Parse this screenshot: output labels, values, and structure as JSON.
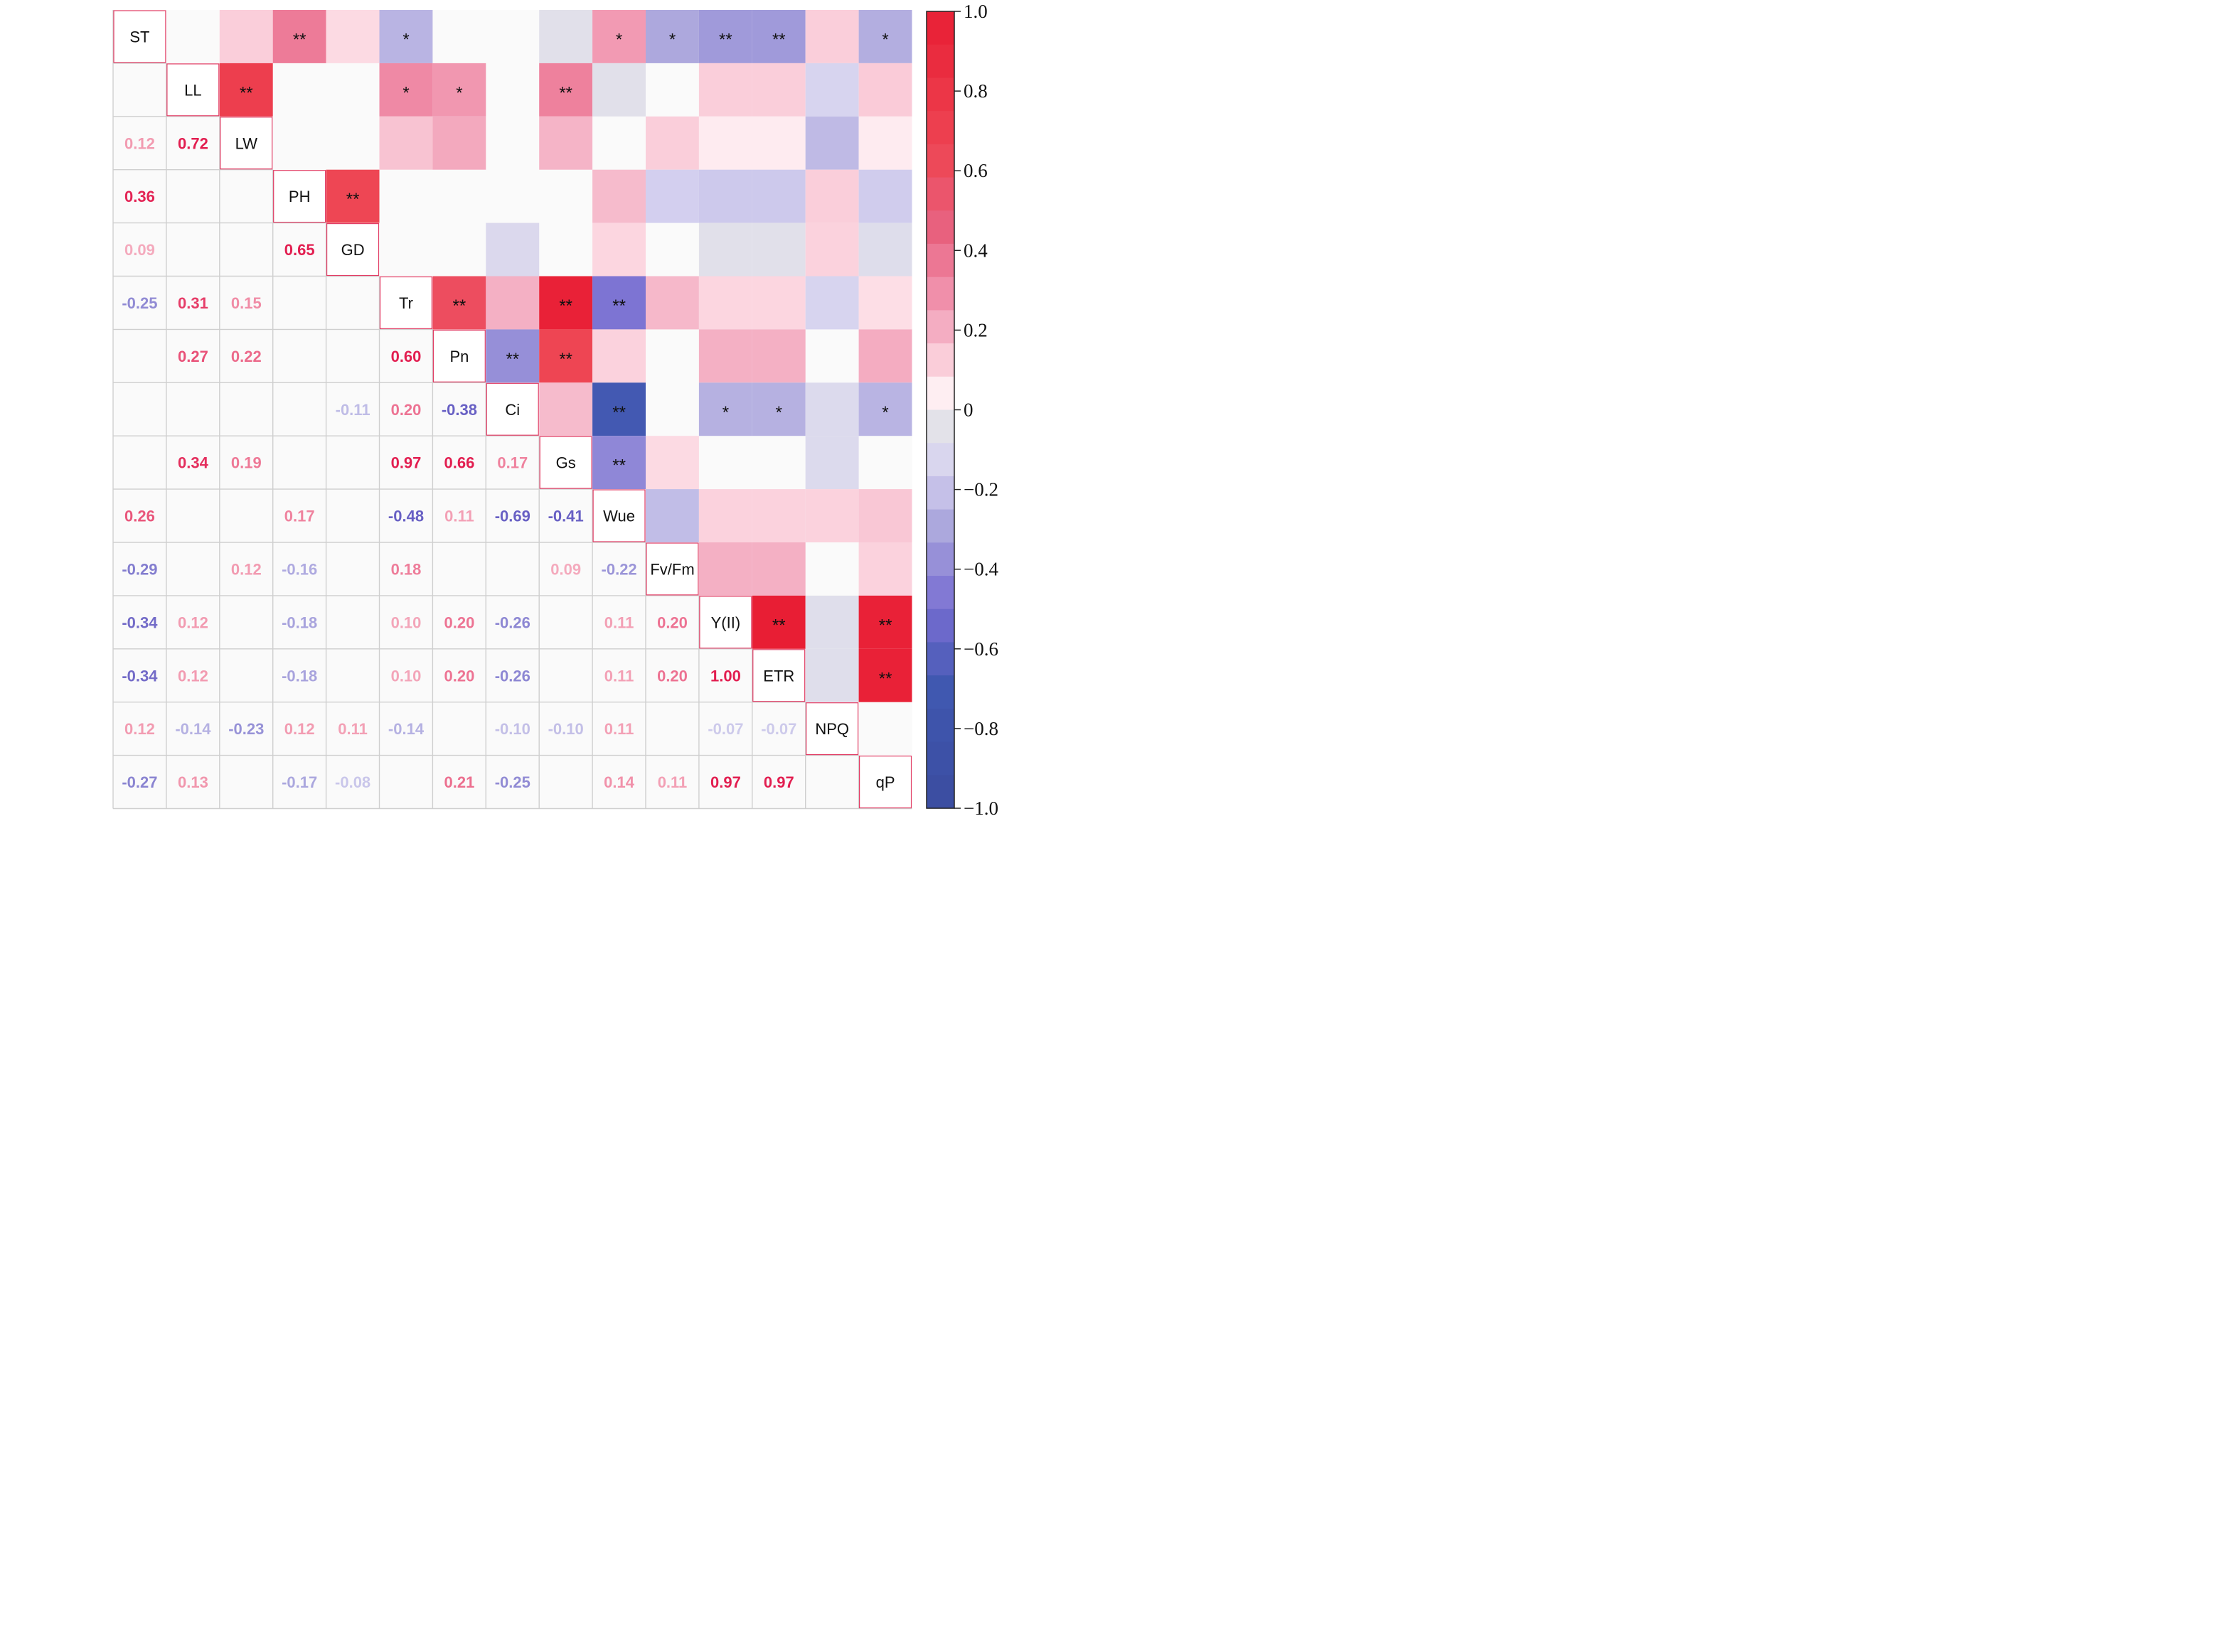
{
  "chart_data": {
    "type": "heatmap",
    "title": "",
    "variables": [
      "ST",
      "LL",
      "LW",
      "PH",
      "GD",
      "Tr",
      "Pn",
      "Ci",
      "Gs",
      "Wue",
      "Fv/Fm",
      "Y(II)",
      "ETR",
      "NPQ",
      "qP"
    ],
    "lower_triangle_values": [
      {
        "row": "LW",
        "col": "ST",
        "value": "0.12"
      },
      {
        "row": "LW",
        "col": "LL",
        "value": "0.72"
      },
      {
        "row": "PH",
        "col": "ST",
        "value": "0.36"
      },
      {
        "row": "GD",
        "col": "ST",
        "value": "0.09"
      },
      {
        "row": "GD",
        "col": "PH",
        "value": "0.65"
      },
      {
        "row": "Tr",
        "col": "ST",
        "value": "-0.25"
      },
      {
        "row": "Tr",
        "col": "LL",
        "value": "0.31"
      },
      {
        "row": "Tr",
        "col": "LW",
        "value": "0.15"
      },
      {
        "row": "Pn",
        "col": "LL",
        "value": "0.27"
      },
      {
        "row": "Pn",
        "col": "LW",
        "value": "0.22"
      },
      {
        "row": "Pn",
        "col": "Tr",
        "value": "0.60"
      },
      {
        "row": "Ci",
        "col": "GD",
        "value": "-0.11"
      },
      {
        "row": "Ci",
        "col": "Tr",
        "value": "0.20"
      },
      {
        "row": "Ci",
        "col": "Pn",
        "value": "-0.38"
      },
      {
        "row": "Gs",
        "col": "LL",
        "value": "0.34"
      },
      {
        "row": "Gs",
        "col": "LW",
        "value": "0.19"
      },
      {
        "row": "Gs",
        "col": "Tr",
        "value": "0.97"
      },
      {
        "row": "Gs",
        "col": "Pn",
        "value": "0.66"
      },
      {
        "row": "Gs",
        "col": "Ci",
        "value": "0.17"
      },
      {
        "row": "Wue",
        "col": "ST",
        "value": "0.26"
      },
      {
        "row": "Wue",
        "col": "PH",
        "value": "0.17"
      },
      {
        "row": "Wue",
        "col": "Tr",
        "value": "-0.48"
      },
      {
        "row": "Wue",
        "col": "Pn",
        "value": "0.11"
      },
      {
        "row": "Wue",
        "col": "Ci",
        "value": "-0.69"
      },
      {
        "row": "Wue",
        "col": "Gs",
        "value": "-0.41"
      },
      {
        "row": "Fv/Fm",
        "col": "ST",
        "value": "-0.29"
      },
      {
        "row": "Fv/Fm",
        "col": "LW",
        "value": "0.12"
      },
      {
        "row": "Fv/Fm",
        "col": "PH",
        "value": "-0.16"
      },
      {
        "row": "Fv/Fm",
        "col": "Tr",
        "value": "0.18"
      },
      {
        "row": "Fv/Fm",
        "col": "Gs",
        "value": "0.09"
      },
      {
        "row": "Fv/Fm",
        "col": "Wue",
        "value": "-0.22"
      },
      {
        "row": "Y(II)",
        "col": "ST",
        "value": "-0.34"
      },
      {
        "row": "Y(II)",
        "col": "LL",
        "value": "0.12"
      },
      {
        "row": "Y(II)",
        "col": "PH",
        "value": "-0.18"
      },
      {
        "row": "Y(II)",
        "col": "Tr",
        "value": "0.10"
      },
      {
        "row": "Y(II)",
        "col": "Pn",
        "value": "0.20"
      },
      {
        "row": "Y(II)",
        "col": "Ci",
        "value": "-0.26"
      },
      {
        "row": "Y(II)",
        "col": "Wue",
        "value": "0.11"
      },
      {
        "row": "Y(II)",
        "col": "Fv/Fm",
        "value": "0.20"
      },
      {
        "row": "ETR",
        "col": "ST",
        "value": "-0.34"
      },
      {
        "row": "ETR",
        "col": "LL",
        "value": "0.12"
      },
      {
        "row": "ETR",
        "col": "PH",
        "value": "-0.18"
      },
      {
        "row": "ETR",
        "col": "Tr",
        "value": "0.10"
      },
      {
        "row": "ETR",
        "col": "Pn",
        "value": "0.20"
      },
      {
        "row": "ETR",
        "col": "Ci",
        "value": "-0.26"
      },
      {
        "row": "ETR",
        "col": "Wue",
        "value": "0.11"
      },
      {
        "row": "ETR",
        "col": "Fv/Fm",
        "value": "0.20"
      },
      {
        "row": "ETR",
        "col": "Y(II)",
        "value": "1.00"
      },
      {
        "row": "NPQ",
        "col": "ST",
        "value": "0.12"
      },
      {
        "row": "NPQ",
        "col": "LL",
        "value": "-0.14"
      },
      {
        "row": "NPQ",
        "col": "LW",
        "value": "-0.23"
      },
      {
        "row": "NPQ",
        "col": "PH",
        "value": "0.12"
      },
      {
        "row": "NPQ",
        "col": "GD",
        "value": "0.11"
      },
      {
        "row": "NPQ",
        "col": "Tr",
        "value": "-0.14"
      },
      {
        "row": "NPQ",
        "col": "Ci",
        "value": "-0.10"
      },
      {
        "row": "NPQ",
        "col": "Gs",
        "value": "-0.10"
      },
      {
        "row": "NPQ",
        "col": "Wue",
        "value": "0.11"
      },
      {
        "row": "NPQ",
        "col": "Y(II)",
        "value": "-0.07"
      },
      {
        "row": "NPQ",
        "col": "ETR",
        "value": "-0.07"
      },
      {
        "row": "qP",
        "col": "ST",
        "value": "-0.27"
      },
      {
        "row": "qP",
        "col": "LL",
        "value": "0.13"
      },
      {
        "row": "qP",
        "col": "PH",
        "value": "-0.17"
      },
      {
        "row": "qP",
        "col": "GD",
        "value": "-0.08"
      },
      {
        "row": "qP",
        "col": "Pn",
        "value": "0.21"
      },
      {
        "row": "qP",
        "col": "Ci",
        "value": "-0.25"
      },
      {
        "row": "qP",
        "col": "Wue",
        "value": "0.14"
      },
      {
        "row": "qP",
        "col": "Fv/Fm",
        "value": "0.11"
      },
      {
        "row": "qP",
        "col": "Y(II)",
        "value": "0.97"
      },
      {
        "row": "qP",
        "col": "ETR",
        "value": "0.97"
      }
    ],
    "upper_triangle_tiles": [
      {
        "row": "ST",
        "col": "LW",
        "value": 0.12,
        "sig": ""
      },
      {
        "row": "ST",
        "col": "PH",
        "value": 0.36,
        "sig": "**"
      },
      {
        "row": "ST",
        "col": "GD",
        "value": 0.09,
        "sig": ""
      },
      {
        "row": "ST",
        "col": "Tr",
        "value": -0.25,
        "sig": "*"
      },
      {
        "row": "ST",
        "col": "Gs",
        "value": -0.06,
        "sig": ""
      },
      {
        "row": "ST",
        "col": "Wue",
        "value": 0.26,
        "sig": "*"
      },
      {
        "row": "ST",
        "col": "Fv/Fm",
        "value": -0.29,
        "sig": "*"
      },
      {
        "row": "ST",
        "col": "Y(II)",
        "value": -0.34,
        "sig": "**"
      },
      {
        "row": "ST",
        "col": "ETR",
        "value": -0.34,
        "sig": "**"
      },
      {
        "row": "ST",
        "col": "NPQ",
        "value": 0.12,
        "sig": ""
      },
      {
        "row": "ST",
        "col": "qP",
        "value": -0.27,
        "sig": "*"
      },
      {
        "row": "LL",
        "col": "LW",
        "value": 0.72,
        "sig": "**"
      },
      {
        "row": "LL",
        "col": "Tr",
        "value": 0.31,
        "sig": "*"
      },
      {
        "row": "LL",
        "col": "Pn",
        "value": 0.27,
        "sig": "*"
      },
      {
        "row": "LL",
        "col": "Gs",
        "value": 0.34,
        "sig": "**"
      },
      {
        "row": "LL",
        "col": "Wue",
        "value": -0.06,
        "sig": ""
      },
      {
        "row": "LL",
        "col": "Y(II)",
        "value": 0.12,
        "sig": ""
      },
      {
        "row": "LL",
        "col": "ETR",
        "value": 0.12,
        "sig": ""
      },
      {
        "row": "LL",
        "col": "NPQ",
        "value": -0.14,
        "sig": ""
      },
      {
        "row": "LL",
        "col": "qP",
        "value": 0.13,
        "sig": ""
      },
      {
        "row": "LW",
        "col": "Tr",
        "value": 0.15,
        "sig": ""
      },
      {
        "row": "LW",
        "col": "Pn",
        "value": 0.22,
        "sig": ""
      },
      {
        "row": "LW",
        "col": "Gs",
        "value": 0.19,
        "sig": ""
      },
      {
        "row": "LW",
        "col": "Fv/Fm",
        "value": 0.12,
        "sig": ""
      },
      {
        "row": "LW",
        "col": "Y(II)",
        "value": 0.05,
        "sig": ""
      },
      {
        "row": "LW",
        "col": "ETR",
        "value": 0.05,
        "sig": ""
      },
      {
        "row": "LW",
        "col": "NPQ",
        "value": -0.23,
        "sig": ""
      },
      {
        "row": "LW",
        "col": "qP",
        "value": 0.05,
        "sig": ""
      },
      {
        "row": "PH",
        "col": "GD",
        "value": 0.65,
        "sig": "**"
      },
      {
        "row": "PH",
        "col": "Wue",
        "value": 0.17,
        "sig": ""
      },
      {
        "row": "PH",
        "col": "Fv/Fm",
        "value": -0.16,
        "sig": ""
      },
      {
        "row": "PH",
        "col": "Y(II)",
        "value": -0.18,
        "sig": ""
      },
      {
        "row": "PH",
        "col": "ETR",
        "value": -0.18,
        "sig": ""
      },
      {
        "row": "PH",
        "col": "NPQ",
        "value": 0.12,
        "sig": ""
      },
      {
        "row": "PH",
        "col": "qP",
        "value": -0.17,
        "sig": ""
      },
      {
        "row": "GD",
        "col": "Ci",
        "value": -0.11,
        "sig": ""
      },
      {
        "row": "GD",
        "col": "Wue",
        "value": 0.1,
        "sig": ""
      },
      {
        "row": "GD",
        "col": "Y(II)",
        "value": -0.06,
        "sig": ""
      },
      {
        "row": "GD",
        "col": "ETR",
        "value": -0.06,
        "sig": ""
      },
      {
        "row": "GD",
        "col": "NPQ",
        "value": 0.11,
        "sig": ""
      },
      {
        "row": "GD",
        "col": "qP",
        "value": -0.08,
        "sig": ""
      },
      {
        "row": "Tr",
        "col": "Pn",
        "value": 0.6,
        "sig": "**"
      },
      {
        "row": "Tr",
        "col": "Ci",
        "value": 0.2,
        "sig": ""
      },
      {
        "row": "Tr",
        "col": "Gs",
        "value": 0.97,
        "sig": "**"
      },
      {
        "row": "Tr",
        "col": "Wue",
        "value": -0.48,
        "sig": "**"
      },
      {
        "row": "Tr",
        "col": "Fv/Fm",
        "value": 0.18,
        "sig": ""
      },
      {
        "row": "Tr",
        "col": "Y(II)",
        "value": 0.1,
        "sig": ""
      },
      {
        "row": "Tr",
        "col": "ETR",
        "value": 0.1,
        "sig": ""
      },
      {
        "row": "Tr",
        "col": "NPQ",
        "value": -0.14,
        "sig": ""
      },
      {
        "row": "Tr",
        "col": "qP",
        "value": 0.08,
        "sig": ""
      },
      {
        "row": "Pn",
        "col": "Ci",
        "value": -0.38,
        "sig": "**"
      },
      {
        "row": "Pn",
        "col": "Gs",
        "value": 0.66,
        "sig": "**"
      },
      {
        "row": "Pn",
        "col": "Wue",
        "value": 0.11,
        "sig": ""
      },
      {
        "row": "Pn",
        "col": "Y(II)",
        "value": 0.2,
        "sig": ""
      },
      {
        "row": "Pn",
        "col": "ETR",
        "value": 0.2,
        "sig": ""
      },
      {
        "row": "Pn",
        "col": "qP",
        "value": 0.21,
        "sig": ""
      },
      {
        "row": "Ci",
        "col": "Gs",
        "value": 0.17,
        "sig": ""
      },
      {
        "row": "Ci",
        "col": "Wue",
        "value": -0.69,
        "sig": "**"
      },
      {
        "row": "Ci",
        "col": "Y(II)",
        "value": -0.26,
        "sig": "*"
      },
      {
        "row": "Ci",
        "col": "ETR",
        "value": -0.26,
        "sig": "*"
      },
      {
        "row": "Ci",
        "col": "NPQ",
        "value": -0.1,
        "sig": ""
      },
      {
        "row": "Ci",
        "col": "qP",
        "value": -0.25,
        "sig": "*"
      },
      {
        "row": "Gs",
        "col": "Wue",
        "value": -0.41,
        "sig": "**"
      },
      {
        "row": "Gs",
        "col": "Fv/Fm",
        "value": 0.09,
        "sig": ""
      },
      {
        "row": "Gs",
        "col": "NPQ",
        "value": -0.1,
        "sig": ""
      },
      {
        "row": "Wue",
        "col": "Fv/Fm",
        "value": -0.22,
        "sig": ""
      },
      {
        "row": "Wue",
        "col": "Y(II)",
        "value": 0.11,
        "sig": ""
      },
      {
        "row": "Wue",
        "col": "ETR",
        "value": 0.11,
        "sig": ""
      },
      {
        "row": "Wue",
        "col": "NPQ",
        "value": 0.11,
        "sig": ""
      },
      {
        "row": "Wue",
        "col": "qP",
        "value": 0.14,
        "sig": ""
      },
      {
        "row": "Fv/Fm",
        "col": "Y(II)",
        "value": 0.2,
        "sig": ""
      },
      {
        "row": "Fv/Fm",
        "col": "ETR",
        "value": 0.2,
        "sig": ""
      },
      {
        "row": "Fv/Fm",
        "col": "qP",
        "value": 0.11,
        "sig": ""
      },
      {
        "row": "Y(II)",
        "col": "ETR",
        "value": 1.0,
        "sig": "**"
      },
      {
        "row": "Y(II)",
        "col": "NPQ",
        "value": -0.07,
        "sig": ""
      },
      {
        "row": "Y(II)",
        "col": "qP",
        "value": 0.97,
        "sig": "**"
      },
      {
        "row": "ETR",
        "col": "NPQ",
        "value": -0.07,
        "sig": ""
      },
      {
        "row": "ETR",
        "col": "qP",
        "value": 0.97,
        "sig": "**"
      }
    ],
    "colorbar": {
      "range": [
        -1.0,
        1.0
      ],
      "ticks": [
        "1.0",
        "0.8",
        "0.6",
        "0.4",
        "0.2",
        "0",
        "−0.2",
        "−0.4",
        "−0.6",
        "−0.8",
        "−1.0"
      ],
      "tick_values": [
        1.0,
        0.8,
        0.6,
        0.4,
        0.2,
        0,
        -0.2,
        -0.4,
        -0.6,
        -0.8,
        -1.0
      ],
      "placement": "right"
    },
    "colors": {
      "strong_positive": "#e8203a",
      "positive": "#ef4f63",
      "moderate_positive": "#f08aa6",
      "weak_positive": "#fcd5e0",
      "neutral": "#ffffff",
      "weak_negative": "#d6d2f0",
      "moderate_negative": "#8c7fd6",
      "strong_negative": "#3d4fa8",
      "grid_line": "#cfcfcf",
      "diagonal_border": "#e23c64"
    }
  }
}
